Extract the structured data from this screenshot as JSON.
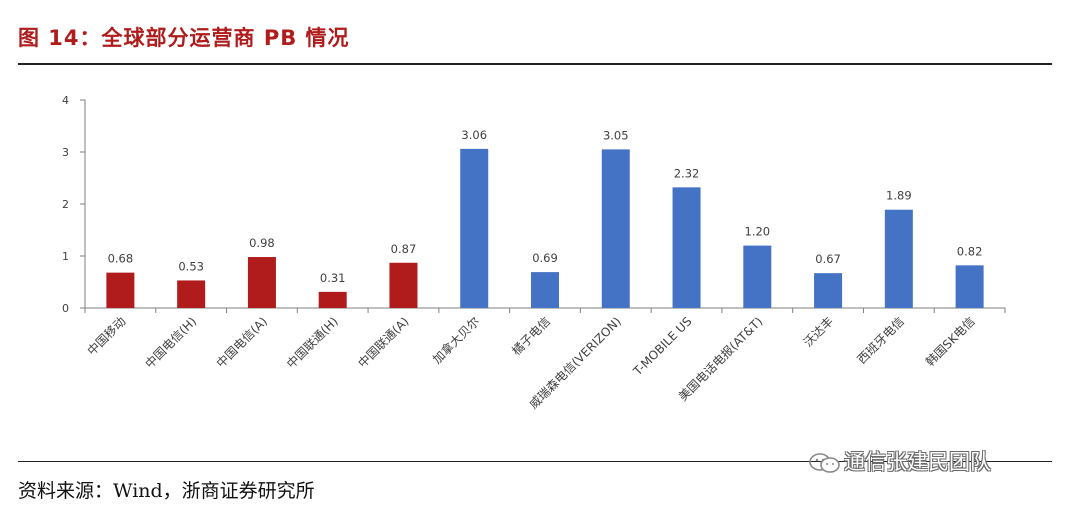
{
  "title": "图 14：全球部分运营商 PB 情况",
  "source": "资料来源：Wind，浙商证券研究所",
  "watermark": "通信张建民团队",
  "colors": {
    "domestic": "#b01c1c",
    "foreign": "#4472c4",
    "title": "#b01c1c"
  },
  "chart_data": {
    "type": "bar",
    "title": "",
    "xlabel": "",
    "ylabel": "",
    "ylim": [
      0,
      4
    ],
    "yticks": [
      "0",
      "1",
      "2",
      "3",
      "4"
    ],
    "grid": false,
    "categories": [
      "中国移动",
      "中国电信(H)",
      "中国电信(A)",
      "中国联通(H)",
      "中国联通(A)",
      "加拿大贝尔",
      "橘子电信",
      "威瑞森电信(VERIZON)",
      "T-MOBILE US",
      "美国电话电报(AT&T)",
      "沃达丰",
      "西班牙电信",
      "韩国SK电信"
    ],
    "values": [
      0.68,
      0.53,
      0.98,
      0.31,
      0.87,
      3.06,
      0.69,
      3.05,
      2.32,
      1.2,
      0.67,
      1.89,
      0.82
    ],
    "value_labels": [
      "0.68",
      "0.53",
      "0.98",
      "0.31",
      "0.87",
      "3.06",
      "0.69",
      "3.05",
      "2.32",
      "1.20",
      "0.67",
      "1.89",
      "0.82"
    ],
    "bar_colors": [
      "#b01c1c",
      "#b01c1c",
      "#b01c1c",
      "#b01c1c",
      "#b01c1c",
      "#4472c4",
      "#4472c4",
      "#4472c4",
      "#4472c4",
      "#4472c4",
      "#4472c4",
      "#4472c4",
      "#4472c4"
    ]
  }
}
